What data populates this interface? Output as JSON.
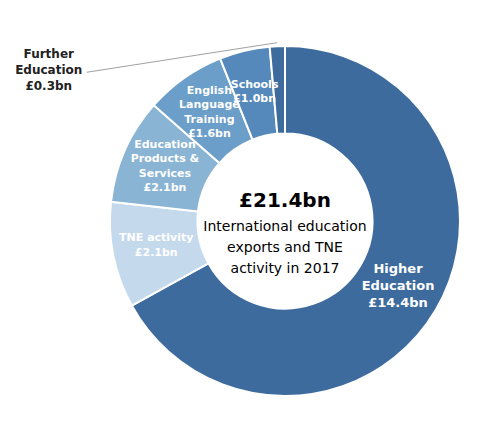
{
  "chart_data": {
    "type": "pie",
    "title": "£21.4bn",
    "subtitle": "International education\nexports and TNE\nactivity in 2017",
    "categories": [
      "Higher\nEducation",
      "TNE activity",
      "Education\nProducts &\nServices",
      "English\nLanguage\nTraining",
      "Schools",
      "Further\nEducation"
    ],
    "values": [
      14.4,
      2.1,
      2.1,
      1.6,
      1.0,
      0.3
    ],
    "value_labels": [
      "£14.4bn",
      "£2.1bn",
      "£2.1bn",
      "£1.6bn",
      "£1.0bn",
      "£0.3bn"
    ],
    "colors": [
      "#3d6b9e",
      "#c5d9ec",
      "#8ab4d4",
      "#6b9ec8",
      "#5589bb",
      "#3d6b9e"
    ],
    "data_labels": true
  }
}
